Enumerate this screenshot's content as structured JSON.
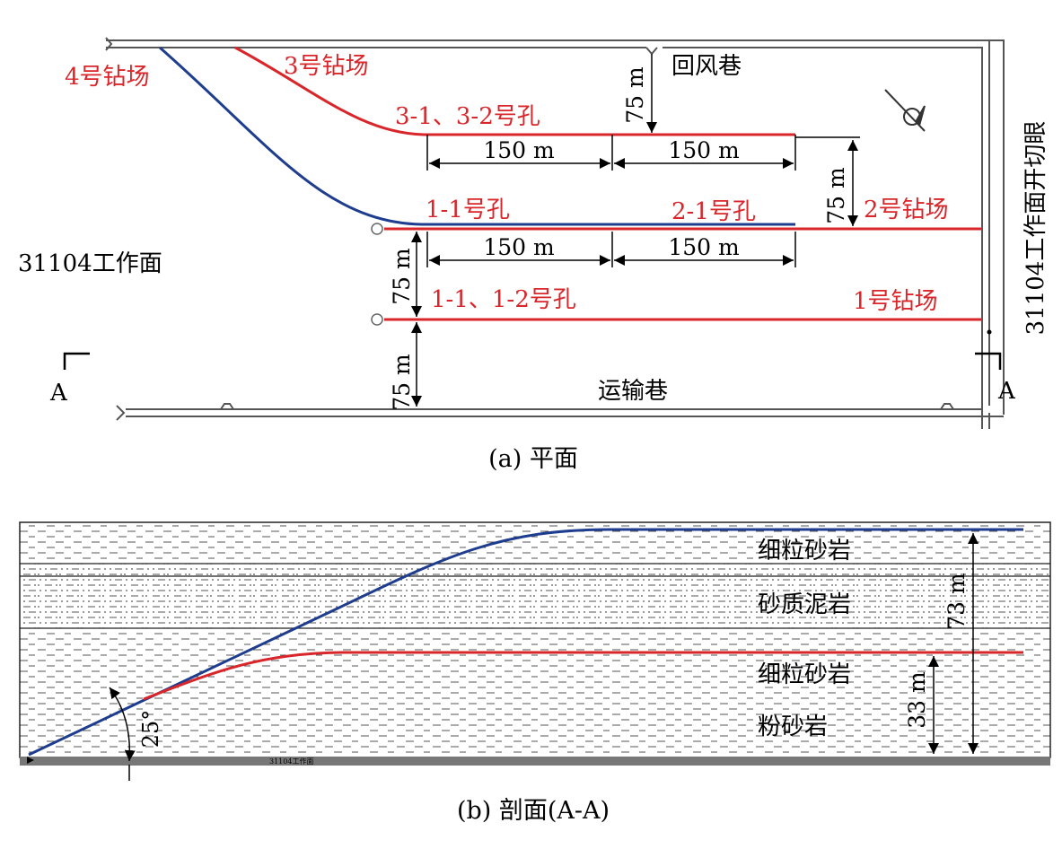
{
  "colors": {
    "red": "#d9262b",
    "blue": "#1f3d8f",
    "black": "#000000",
    "road": "#555555"
  },
  "plan": {
    "caption": "(a) 平面",
    "site4": "4号钻场",
    "site3": "3号钻场",
    "site2": "2号钻场",
    "site1": "1号钻场",
    "return_airway": "回风巷",
    "haulage_road": "运输巷",
    "workface": "31104工作面",
    "open_cut": "31104工作面开切眼",
    "hole_3": "3-1、3-2号孔",
    "hole_1_1": "1-1号孔",
    "hole_2_1": "2-1号孔",
    "hole_1_12": "1-1、1-2号孔",
    "dim_150": "150 m",
    "dim_75": "75 m",
    "section_mark": "A"
  },
  "section": {
    "caption": "(b) 剖面(A-A)",
    "layer_fine_sand_top": "细粒砂岩",
    "layer_sandy_mud": "砂质泥岩",
    "layer_fine_sand_bottom": "细粒砂岩",
    "layer_silt": "粉砂岩",
    "dim_73": "73 m",
    "dim_33": "33 m",
    "angle": "25°",
    "workface_small": "31104工作面"
  }
}
